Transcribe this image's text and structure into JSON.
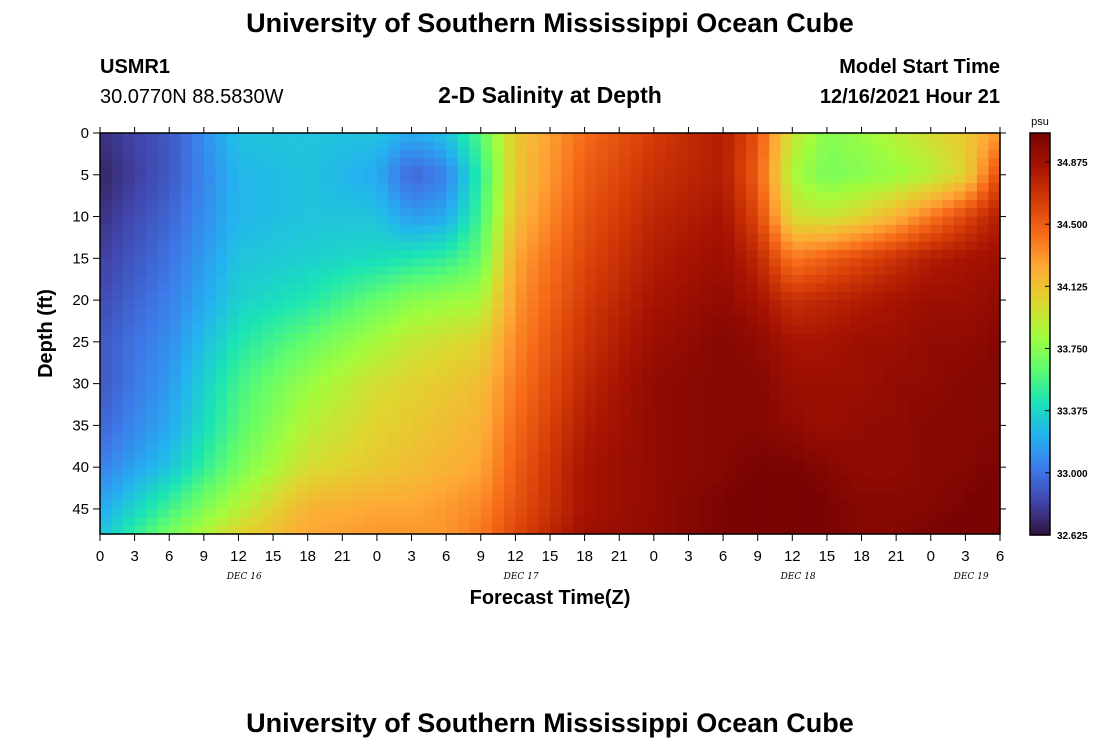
{
  "header": {
    "title": "University of Southern Mississippi Ocean Cube",
    "station_id": "USMR1",
    "location": "30.0770N  88.5830W",
    "subtitle": "2-D Salinity at Depth",
    "model_start_label": "Model Start Time",
    "model_start_value": "12/16/2021 Hour 21"
  },
  "footer": {
    "title": "University of Southern Mississippi Ocean Cube"
  },
  "chart_data": {
    "type": "heatmap",
    "title": "2-D Salinity at Depth",
    "xlabel": "Forecast Time(Z)",
    "ylabel": "Depth (ft)",
    "x_tick_labels": [
      "0",
      "3",
      "6",
      "9",
      "12",
      "15",
      "18",
      "21",
      "0",
      "3",
      "6",
      "9",
      "12",
      "15",
      "18",
      "21",
      "0",
      "3",
      "6",
      "9",
      "12",
      "15",
      "18",
      "21",
      "0",
      "3",
      "6"
    ],
    "day_labels": [
      {
        "label": "DEC 16",
        "index": 4
      },
      {
        "label": "DEC 17",
        "index": 12
      },
      {
        "label": "DEC 18",
        "index": 20
      },
      {
        "label": "DEC 19",
        "index": 25
      }
    ],
    "x_range_hours": [
      0,
      78
    ],
    "ylim": [
      0,
      48
    ],
    "y_reversed": true,
    "y_ticks": [
      0,
      5,
      10,
      15,
      20,
      25,
      30,
      35,
      40,
      45
    ],
    "colorbar": {
      "unit": "psu",
      "min": 32.625,
      "max": 35.05,
      "tick_labels": [
        "32.625",
        "33.000",
        "33.375",
        "33.750",
        "34.125",
        "34.500",
        "34.875"
      ],
      "tick_values": [
        32.625,
        33.0,
        33.375,
        33.75,
        34.125,
        34.5,
        34.875
      ],
      "colors": [
        "#30123b",
        "#4145ab",
        "#3e7aea",
        "#24b2f0",
        "#1ae4b6",
        "#61fc6c",
        "#a4fc3c",
        "#dfd52f",
        "#feaa36",
        "#f76b19",
        "#d53c07",
        "#a71302",
        "#7a0403"
      ]
    },
    "depth_grid": [
      0,
      5,
      10,
      15,
      20,
      25,
      30,
      35,
      40,
      45,
      48
    ],
    "time_grid": [
      0,
      6,
      12,
      18,
      24,
      27,
      30,
      33,
      36,
      42,
      48,
      54,
      57,
      60,
      63,
      66,
      69,
      72,
      75,
      78
    ],
    "salinity": [
      [
        32.75,
        32.9,
        33.3,
        33.3,
        33.3,
        33.2,
        33.3,
        33.6,
        34.1,
        34.45,
        34.65,
        34.8,
        34.55,
        33.95,
        33.75,
        33.8,
        33.9,
        34.0,
        34.1,
        34.3
      ],
      [
        32.7,
        32.9,
        33.25,
        33.3,
        33.2,
        32.95,
        33.05,
        33.5,
        34.1,
        34.5,
        34.7,
        34.8,
        34.5,
        33.85,
        33.7,
        33.75,
        33.8,
        33.9,
        34.05,
        34.6
      ],
      [
        32.75,
        32.95,
        33.25,
        33.3,
        33.3,
        33.15,
        33.2,
        33.55,
        34.15,
        34.55,
        34.75,
        34.85,
        34.6,
        34.0,
        33.95,
        34.05,
        34.2,
        34.4,
        34.6,
        34.8
      ],
      [
        32.8,
        33.0,
        33.3,
        33.35,
        33.4,
        33.45,
        33.5,
        33.65,
        34.25,
        34.6,
        34.8,
        34.9,
        34.75,
        34.4,
        34.5,
        34.6,
        34.7,
        34.8,
        34.85,
        34.9
      ],
      [
        32.85,
        33.05,
        33.35,
        33.45,
        33.65,
        33.75,
        33.8,
        33.85,
        34.3,
        34.65,
        34.85,
        34.95,
        34.85,
        34.7,
        34.75,
        34.8,
        34.85,
        34.9,
        34.9,
        34.95
      ],
      [
        32.9,
        33.1,
        33.45,
        33.65,
        33.85,
        33.95,
        34.0,
        34.05,
        34.35,
        34.7,
        34.9,
        35.0,
        34.95,
        34.85,
        34.85,
        34.9,
        34.9,
        34.95,
        34.95,
        35.0
      ],
      [
        32.9,
        33.15,
        33.55,
        33.8,
        34.0,
        34.05,
        34.1,
        34.15,
        34.4,
        34.75,
        34.95,
        35.0,
        35.0,
        34.9,
        34.9,
        34.9,
        34.95,
        34.95,
        35.0,
        35.0
      ],
      [
        32.95,
        33.2,
        33.6,
        33.9,
        34.05,
        34.1,
        34.15,
        34.2,
        34.45,
        34.8,
        34.95,
        35.0,
        35.0,
        34.95,
        34.9,
        34.95,
        34.95,
        35.0,
        35.0,
        35.0
      ],
      [
        33.05,
        33.3,
        33.7,
        34.0,
        34.1,
        34.15,
        34.2,
        34.25,
        34.5,
        34.85,
        34.95,
        35.0,
        35.05,
        35.05,
        35.0,
        34.95,
        34.95,
        35.0,
        35.0,
        35.05
      ],
      [
        33.2,
        33.55,
        33.9,
        34.2,
        34.25,
        34.25,
        34.3,
        34.35,
        34.55,
        34.85,
        34.95,
        35.05,
        35.1,
        35.1,
        35.05,
        35.0,
        35.0,
        35.0,
        35.05,
        35.1
      ],
      [
        33.3,
        33.7,
        34.05,
        34.25,
        34.3,
        34.3,
        34.3,
        34.4,
        34.6,
        34.9,
        34.95,
        35.05,
        35.15,
        35.1,
        35.05,
        35.0,
        35.0,
        35.05,
        35.1,
        35.15
      ]
    ]
  }
}
